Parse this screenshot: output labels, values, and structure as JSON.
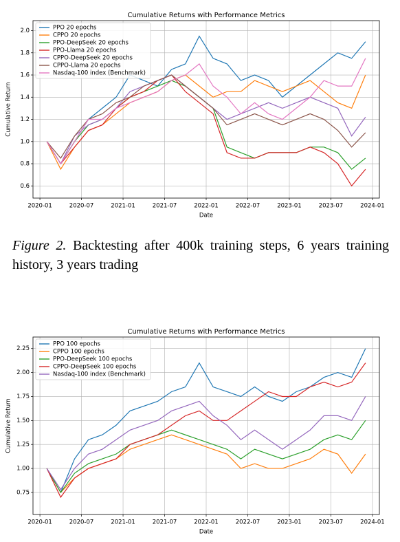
{
  "chart_data": [
    {
      "type": "line",
      "title": "Cumulative Returns with Performance Metrics",
      "x_label": "Date",
      "y_label": "Cumulative Return",
      "x": [
        "2020-02",
        "2020-04",
        "2020-06",
        "2020-08",
        "2020-10",
        "2020-12",
        "2021-02",
        "2021-04",
        "2021-06",
        "2021-08",
        "2021-10",
        "2021-12",
        "2022-02",
        "2022-04",
        "2022-06",
        "2022-08",
        "2022-10",
        "2022-12",
        "2023-02",
        "2023-04",
        "2023-06",
        "2023-08",
        "2023-10",
        "2023-12"
      ],
      "xlim": [
        "2019-12",
        "2024-02"
      ],
      "xticks": [
        "2020-01",
        "2020-07",
        "2021-01",
        "2021-07",
        "2022-01",
        "2022-07",
        "2023-01",
        "2023-07",
        "2024-01"
      ],
      "ylim": [
        0.49,
        2.09
      ],
      "yticks": [
        0.6,
        0.8,
        {
          "value": 1,
          "label": "1.0"
        },
        1.2,
        1.4,
        1.6,
        1.8,
        {
          "value": 2,
          "label": "2.0"
        }
      ],
      "grid": true,
      "legend": "upper left",
      "series": [
        {
          "name": "PPO 20 epochs",
          "color": "#1f77b4",
          "values": [
            1.0,
            0.8,
            1.0,
            1.2,
            1.3,
            1.4,
            1.6,
            1.55,
            1.5,
            1.65,
            1.7,
            1.95,
            1.75,
            1.7,
            1.55,
            1.6,
            1.55,
            1.4,
            1.5,
            1.6,
            1.7,
            1.8,
            1.75,
            1.9
          ]
        },
        {
          "name": "CPPO 20 epochs",
          "color": "#ff7f0e",
          "values": [
            1.0,
            0.75,
            0.95,
            1.1,
            1.15,
            1.25,
            1.35,
            1.4,
            1.45,
            1.55,
            1.6,
            1.5,
            1.4,
            1.45,
            1.45,
            1.55,
            1.5,
            1.45,
            1.5,
            1.55,
            1.45,
            1.35,
            1.3,
            1.6
          ]
        },
        {
          "name": "PPO-DeepSeek 20 epochs",
          "color": "#2ca02c",
          "values": [
            1.0,
            0.8,
            1.0,
            1.15,
            1.2,
            1.3,
            1.4,
            1.45,
            1.5,
            1.55,
            1.5,
            1.4,
            1.3,
            0.95,
            0.9,
            0.85,
            0.9,
            0.9,
            0.9,
            0.95,
            0.95,
            0.9,
            0.75,
            0.85
          ]
        },
        {
          "name": "PPO-Llama 20 epochs",
          "color": "#d62728",
          "values": [
            1.0,
            0.8,
            0.95,
            1.1,
            1.15,
            1.3,
            1.4,
            1.45,
            1.55,
            1.6,
            1.45,
            1.35,
            1.25,
            0.9,
            0.85,
            0.85,
            0.9,
            0.9,
            0.9,
            0.95,
            0.9,
            0.8,
            0.6,
            0.75
          ]
        },
        {
          "name": "CPPO-DeepSeek 20 epochs",
          "color": "#9467bd",
          "values": [
            1.0,
            0.8,
            1.05,
            1.15,
            1.2,
            1.3,
            1.45,
            1.5,
            1.55,
            1.6,
            1.5,
            1.4,
            1.3,
            1.2,
            1.25,
            1.3,
            1.35,
            1.3,
            1.35,
            1.4,
            1.35,
            1.3,
            1.05,
            1.22
          ]
        },
        {
          "name": "CPPO-Llama 20 epochs",
          "color": "#8c564b",
          "values": [
            1.0,
            0.85,
            1.05,
            1.2,
            1.25,
            1.35,
            1.4,
            1.5,
            1.55,
            1.6,
            1.5,
            1.4,
            1.3,
            1.15,
            1.2,
            1.25,
            1.2,
            1.15,
            1.2,
            1.25,
            1.2,
            1.1,
            0.95,
            1.08
          ]
        },
        {
          "name": "Nasdaq-100 index (Benchmark)",
          "color": "#e377c2",
          "values": [
            1.0,
            0.8,
            1.0,
            1.2,
            1.2,
            1.3,
            1.35,
            1.4,
            1.45,
            1.55,
            1.6,
            1.7,
            1.5,
            1.4,
            1.25,
            1.35,
            1.25,
            1.2,
            1.3,
            1.4,
            1.55,
            1.5,
            1.5,
            1.75
          ]
        }
      ]
    },
    {
      "type": "line",
      "title": "Cumulative Returns with Performance Metrics",
      "x_label": "Date",
      "y_label": "Cumulative Return",
      "x": [
        "2020-02",
        "2020-04",
        "2020-06",
        "2020-08",
        "2020-10",
        "2020-12",
        "2021-02",
        "2021-04",
        "2021-06",
        "2021-08",
        "2021-10",
        "2021-12",
        "2022-02",
        "2022-04",
        "2022-06",
        "2022-08",
        "2022-10",
        "2022-12",
        "2023-02",
        "2023-04",
        "2023-06",
        "2023-08",
        "2023-10",
        "2023-12"
      ],
      "xlim": [
        "2019-12",
        "2024-02"
      ],
      "xticks": [
        "2020-01",
        "2020-07",
        "2021-01",
        "2021-07",
        "2022-01",
        "2022-07",
        "2023-01",
        "2023-07",
        "2024-01"
      ],
      "ylim": [
        0.52,
        2.37
      ],
      "yticks": [
        0.75,
        {
          "value": 1,
          "label": "1.00"
        },
        1.25,
        {
          "value": 1.5,
          "label": "1.50"
        },
        1.75,
        {
          "value": 2,
          "label": "2.00"
        },
        2.25
      ],
      "grid": true,
      "legend": "upper left",
      "series": [
        {
          "name": "PPO 100 epochs",
          "color": "#1f77b4",
          "values": [
            1.0,
            0.75,
            1.1,
            1.3,
            1.35,
            1.45,
            1.6,
            1.65,
            1.7,
            1.8,
            1.85,
            2.1,
            1.85,
            1.8,
            1.75,
            1.85,
            1.75,
            1.7,
            1.8,
            1.85,
            1.95,
            2.0,
            1.95,
            2.25
          ]
        },
        {
          "name": "CPPO 100 epochs",
          "color": "#ff7f0e",
          "values": [
            1.0,
            0.75,
            0.9,
            1.0,
            1.05,
            1.1,
            1.2,
            1.25,
            1.3,
            1.35,
            1.3,
            1.25,
            1.2,
            1.15,
            1.0,
            1.05,
            1.0,
            1.0,
            1.05,
            1.1,
            1.2,
            1.15,
            0.95,
            1.15
          ]
        },
        {
          "name": "PPO-DeepSeek 100 epochs",
          "color": "#2ca02c",
          "values": [
            1.0,
            0.75,
            0.95,
            1.05,
            1.1,
            1.15,
            1.25,
            1.3,
            1.35,
            1.4,
            1.35,
            1.3,
            1.25,
            1.2,
            1.1,
            1.2,
            1.15,
            1.1,
            1.15,
            1.2,
            1.3,
            1.35,
            1.3,
            1.5
          ]
        },
        {
          "name": "CPPO-DeepSeek 100 epochs",
          "color": "#d62728",
          "values": [
            1.0,
            0.7,
            0.9,
            1.0,
            1.05,
            1.1,
            1.25,
            1.3,
            1.35,
            1.45,
            1.55,
            1.6,
            1.5,
            1.5,
            1.6,
            1.7,
            1.8,
            1.75,
            1.75,
            1.85,
            1.9,
            1.85,
            1.9,
            2.1
          ]
        },
        {
          "name": "Nasdaq-100 index (Benchmark)",
          "color": "#9467bd",
          "values": [
            1.0,
            0.78,
            1.0,
            1.15,
            1.2,
            1.3,
            1.4,
            1.45,
            1.5,
            1.6,
            1.65,
            1.7,
            1.55,
            1.45,
            1.3,
            1.4,
            1.3,
            1.2,
            1.3,
            1.4,
            1.55,
            1.55,
            1.5,
            1.75
          ]
        }
      ]
    }
  ],
  "caption": {
    "label": "Figure 2.",
    "text": "Backtesting after 400k training steps, 6 years training history, 3 years trading"
  }
}
